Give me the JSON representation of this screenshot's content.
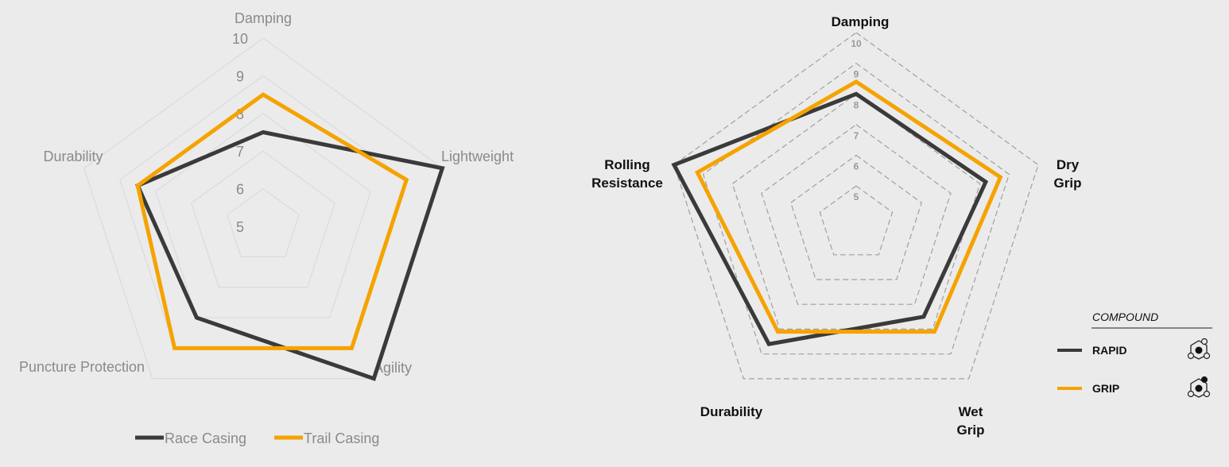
{
  "chart_data": [
    {
      "type": "radar",
      "axes": [
        "Damping",
        "Lightweight",
        "Agility",
        "Puncture Protection",
        "Durability"
      ],
      "rlim": [
        5,
        10
      ],
      "ticks": [
        "5",
        "6",
        "7",
        "8",
        "9",
        "10"
      ],
      "series": [
        {
          "name": "Race Casing",
          "color": "#3a3a3a",
          "values": [
            7.5,
            10,
            10,
            8,
            8.5
          ]
        },
        {
          "name": "Trail Casing",
          "color": "#f5a300",
          "values": [
            8.5,
            9,
            9,
            9,
            8.5
          ]
        }
      ],
      "legend": "bottom",
      "grid": "solid"
    },
    {
      "type": "radar",
      "axes": [
        [
          "Damping"
        ],
        [
          "Dry",
          "Grip"
        ],
        [
          "Wet",
          "Grip"
        ],
        [
          "Durability"
        ],
        [
          "Rolling",
          "Resistance"
        ]
      ],
      "rlim": [
        3.76,
        10
      ],
      "ticks": [
        "5",
        "6",
        "7",
        "8",
        "9",
        "10"
      ],
      "series": [
        {
          "name": "RAPID",
          "color": "#3a3a3a",
          "values": [
            8,
            8.2,
            7.5,
            8.6,
            10
          ]
        },
        {
          "name": "GRIP",
          "color": "#f5a300",
          "values": [
            8.4,
            8.7,
            8.1,
            8.1,
            9.2
          ]
        }
      ],
      "legend_title": "COMPOUND",
      "legend": "bottom-right",
      "grid": "dashed"
    }
  ]
}
